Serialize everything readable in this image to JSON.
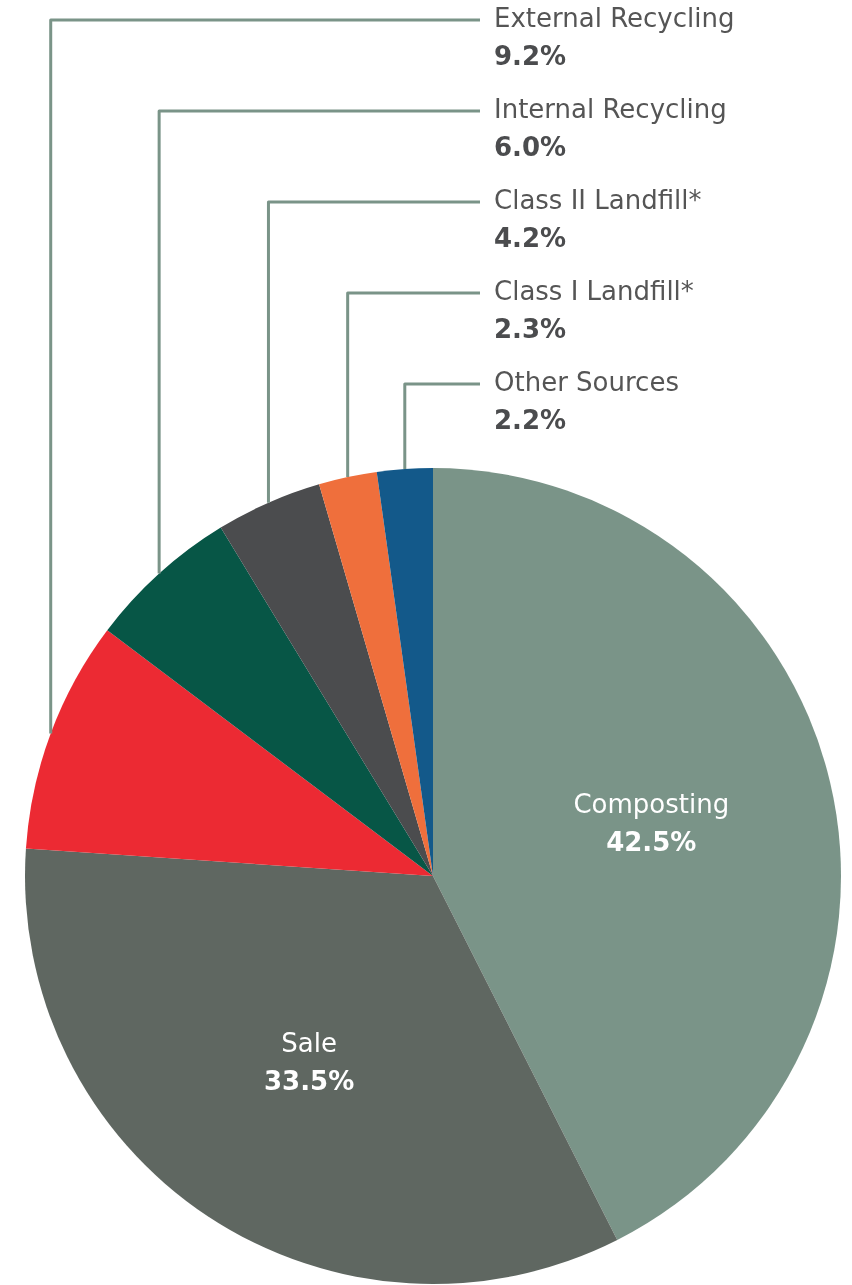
{
  "chart_data": {
    "type": "pie",
    "categories": [
      "Composting",
      "Sale",
      "External Recycling",
      "Internal Recycling",
      "Class II Landfill*",
      "Class I Landfill*",
      "Other Sources"
    ],
    "values": [
      42.5,
      33.5,
      9.2,
      6.0,
      4.2,
      2.3,
      2.2
    ],
    "colors": [
      "#7a9488",
      "#5f6761",
      "#ec2a33",
      "#075646",
      "#4b4c4e",
      "#ef6f3c",
      "#13598a"
    ],
    "value_labels": [
      "42.5%",
      "33.5%",
      "9.2%",
      "6.0%",
      "4.2%",
      "2.3%",
      "2.2%"
    ],
    "legend": false
  }
}
